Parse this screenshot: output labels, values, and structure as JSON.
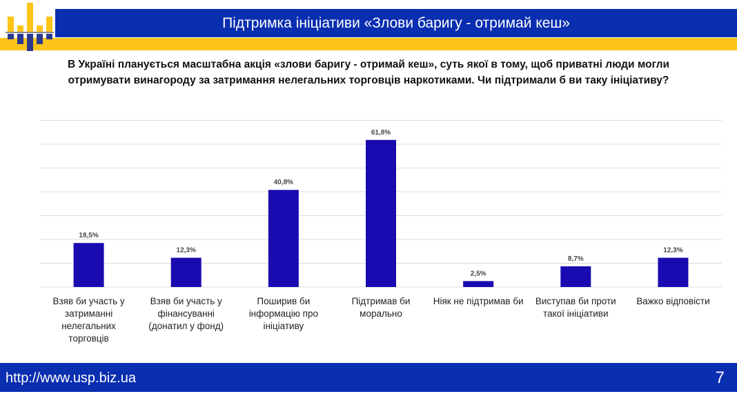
{
  "header": {
    "title": "Підтримка ініціативи «Злови баригу - отримай кеш»"
  },
  "question": "В Україні планується масштабна акція «злови баригу - отримай кеш», суть якої в тому, щоб приватні люди могли отримувати винагороду за затримання нелегальних торговців наркотиками. Чи підтримали б ви таку ініціативу?",
  "footer": {
    "url": "http://www.usp.biz.ua",
    "page": "7"
  },
  "colors": {
    "bar": "#1a0bb0",
    "header": "#0a2eb0",
    "accent": "#fcc419"
  },
  "chart_data": {
    "type": "bar",
    "categories": [
      "Взяв би участь у затриманні нелегальних торговців",
      "Взяв би участь у фінансуванні (донатил у фонд)",
      "Поширив би інформацію про ініціативу",
      "Підтримав би морально",
      "Ніяк не підтримав би",
      "Виступав би проти такої ініціативи",
      "Важко відповісти"
    ],
    "values": [
      18.5,
      12.3,
      40.8,
      61.8,
      2.5,
      8.7,
      12.3
    ],
    "labels": [
      "18,5%",
      "12,3%",
      "40,8%",
      "61,8%",
      "2,5%",
      "8,7%",
      "12,3%"
    ],
    "ylim": [
      0,
      70
    ],
    "grid": true
  }
}
